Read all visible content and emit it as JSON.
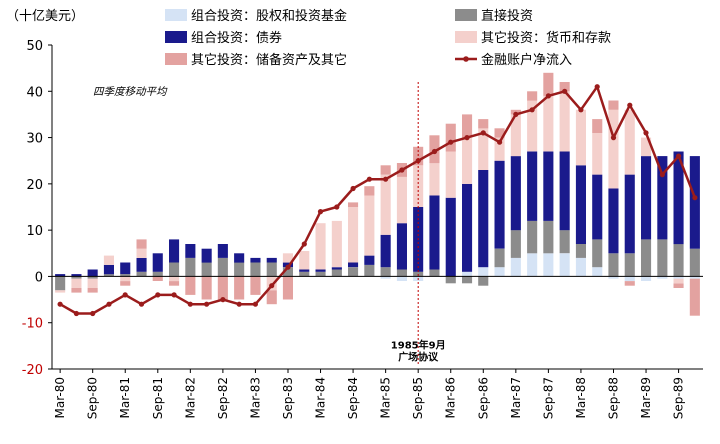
{
  "chart_data": {
    "type": "bar",
    "unit_label": "（十亿美元）",
    "annotation": "四季度移动平均",
    "event_label_line1": "1985年9月",
    "event_label_line2": "广场协议",
    "event_category": "Sep-85",
    "ylim": [
      -20,
      50
    ],
    "yticks": [
      -20,
      -10,
      0,
      10,
      20,
      30,
      40,
      50
    ],
    "grid": false,
    "legend_position": "top",
    "tick_labels": [
      "Mar-80",
      "Sep-80",
      "Mar-81",
      "Sep-81",
      "Mar-82",
      "Sep-82",
      "Mar-83",
      "Sep-83",
      "Mar-84",
      "Sep-84",
      "Mar-85",
      "Sep-85",
      "Mar-86",
      "Sep-86",
      "Mar-87",
      "Sep-87",
      "Mar-88",
      "Sep-88",
      "Mar-89",
      "Sep-89"
    ],
    "categories": [
      "Mar-80",
      "Jun-80",
      "Sep-80",
      "Dec-80",
      "Mar-81",
      "Jun-81",
      "Sep-81",
      "Dec-81",
      "Mar-82",
      "Jun-82",
      "Sep-82",
      "Dec-82",
      "Mar-83",
      "Jun-83",
      "Sep-83",
      "Dec-83",
      "Mar-84",
      "Jun-84",
      "Sep-84",
      "Dec-84",
      "Mar-85",
      "Jun-85",
      "Sep-85",
      "Dec-85",
      "Mar-86",
      "Jun-86",
      "Sep-86",
      "Dec-86",
      "Mar-87",
      "Jun-87",
      "Sep-87",
      "Dec-87",
      "Mar-88",
      "Jun-88",
      "Sep-88",
      "Dec-88",
      "Mar-89",
      "Jun-89",
      "Sep-89",
      "Dec-89"
    ],
    "bar_series": [
      {
        "name": "组合投资：股权和投资基金",
        "color": "#d5e3f5",
        "values": [
          0,
          0,
          0,
          0,
          0,
          0,
          0,
          0,
          0,
          0,
          0,
          0,
          0,
          0,
          0,
          0,
          0,
          0,
          0,
          0,
          -0.5,
          -1,
          -1,
          0,
          0,
          1,
          2,
          2,
          4,
          5,
          5,
          5,
          4,
          2,
          -0.5,
          -1,
          -1,
          -0.5,
          -0.5,
          -0.5
        ]
      },
      {
        "name": "直接投资",
        "color": "#8c8c8c",
        "values": [
          -3,
          -0.5,
          -0.5,
          0.5,
          0.5,
          1,
          1,
          3,
          4,
          3,
          4,
          3,
          3,
          3,
          2,
          1,
          1,
          1.5,
          2,
          2.5,
          2,
          1.5,
          1,
          1.5,
          -1.5,
          -1.5,
          -2,
          4,
          6,
          7,
          7,
          5,
          3,
          6,
          5,
          5,
          8,
          8,
          7,
          6
        ]
      },
      {
        "name": "组合投资：债券",
        "color": "#1a1a8c",
        "values": [
          0.5,
          0.5,
          1.5,
          2,
          2.5,
          3,
          4,
          5,
          3,
          3,
          3,
          2,
          1,
          1,
          1,
          0.5,
          0.5,
          0.5,
          1,
          2,
          7,
          10,
          14,
          16,
          17,
          19,
          21,
          19,
          16,
          15,
          15,
          17,
          17,
          14,
          14,
          17,
          18,
          18,
          20,
          20
        ]
      },
      {
        "name": "其它投资：货币和存款",
        "color": "#f4d0cc",
        "values": [
          -0.5,
          -2,
          -2,
          2,
          -1,
          2,
          0,
          -1,
          0,
          0,
          0,
          0,
          0,
          -3,
          2,
          4,
          10,
          10,
          12,
          13,
          13,
          10,
          9,
          7,
          10,
          10,
          9,
          5,
          9,
          11,
          12,
          13,
          12,
          9,
          17,
          14,
          4,
          0,
          -1,
          0
        ]
      },
      {
        "name": "其它投资：储备资产及其它",
        "color": "#e3a2a0",
        "values": [
          0,
          -1,
          -1,
          0,
          -1,
          2,
          -1,
          -1,
          -4,
          -5,
          -5,
          -5,
          -4,
          -3,
          -5,
          0,
          0,
          0,
          1,
          2,
          2,
          3,
          4,
          6,
          6,
          5,
          2,
          2,
          1,
          2,
          5,
          2,
          0,
          3,
          2,
          -1,
          0,
          0,
          -1,
          -8
        ]
      }
    ],
    "line_series": {
      "name": "金融账户净流入",
      "color": "#9b1c1c",
      "values": [
        -6,
        -8,
        -8,
        -6,
        -4,
        -6,
        -4,
        -4,
        -6,
        -6,
        -5,
        -6,
        -6,
        -2,
        2,
        7,
        14,
        15,
        19,
        21,
        21,
        23,
        25,
        27,
        29,
        30,
        31,
        29,
        35,
        36,
        39,
        40,
        36,
        41,
        30,
        37,
        31,
        22,
        26,
        17
      ]
    },
    "legend_labels": {
      "equity": "组合投资：股权和投资基金",
      "direct": "直接投资",
      "bonds": "组合投资：债券",
      "deposits": "其它投资：货币和存款",
      "reserves": "其它投资：储备资产及其它",
      "net": "金融账户净流入"
    }
  }
}
